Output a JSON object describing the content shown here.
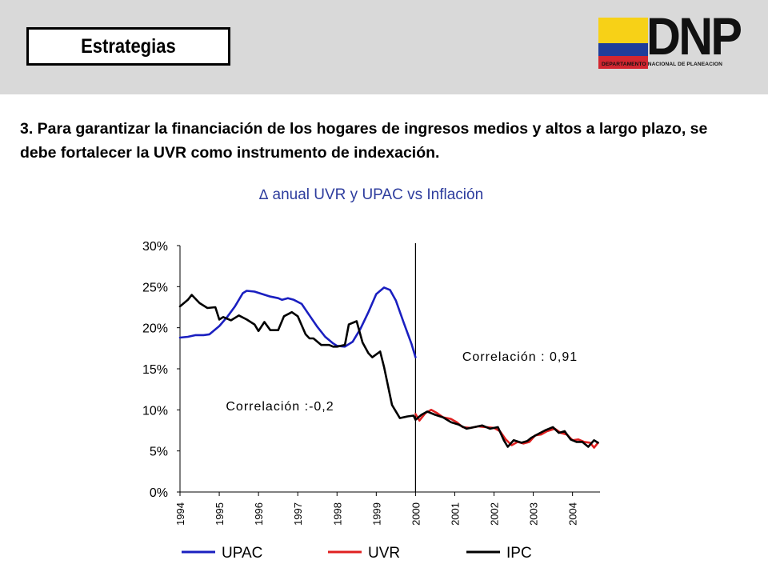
{
  "header": {
    "title": "Estrategias"
  },
  "logo": {
    "wordmark": "DNP",
    "subtitle": "DEPARTAMENTO NACIONAL DE PLANEACION"
  },
  "body": {
    "text": "3.  Para garantizar la financiación de los hogares de ingresos medios y altos a largo plazo, se debe fortalecer la UVR como instrumento de indexación."
  },
  "colors": {
    "upac": "#1a1fc0",
    "uvr": "#e02020",
    "ipc": "#000000",
    "header_band": "#d9d9d9",
    "title_text": "#2e3d9e"
  },
  "chart_data": {
    "type": "line",
    "title_symbol": "∆",
    "title": "anual UVR y UPAC vs Inflación",
    "xlabel": "",
    "ylabel": "",
    "x_ticks": [
      "1994",
      "1995",
      "1996",
      "1997",
      "1998",
      "1999",
      "2000",
      "2001",
      "2002",
      "2003",
      "2004"
    ],
    "y_ticks": [
      "30%",
      "25%",
      "20%",
      "15%",
      "10%",
      "5%",
      "0%"
    ],
    "xlim": [
      1994,
      2004.7
    ],
    "ylim": [
      0,
      30
    ],
    "vertical_line_at": 2000,
    "grid": false,
    "legend_position": "bottom",
    "annotations": [
      "Correlación :-0,2",
      "Correlación : 0,91"
    ],
    "series": [
      {
        "name": "UPAC",
        "x": [
          1994.0,
          1994.2,
          1994.4,
          1994.6,
          1994.75,
          1995.0,
          1995.2,
          1995.4,
          1995.6,
          1995.7,
          1995.9,
          1996.1,
          1996.3,
          1996.5,
          1996.6,
          1996.75,
          1996.9,
          1997.1,
          1997.3,
          1997.5,
          1997.7,
          1997.9,
          1998.0,
          1998.2,
          1998.4,
          1998.6,
          1998.8,
          1999.0,
          1999.2,
          1999.35,
          1999.5,
          1999.7,
          1999.9,
          2000.0
        ],
        "y": [
          18.8,
          18.9,
          19.1,
          19.1,
          19.2,
          20.2,
          21.3,
          22.6,
          24.2,
          24.5,
          24.4,
          24.1,
          23.8,
          23.6,
          23.4,
          23.6,
          23.4,
          22.9,
          21.5,
          20.1,
          18.9,
          18.1,
          17.8,
          17.7,
          18.3,
          19.9,
          21.9,
          24.1,
          24.9,
          24.6,
          23.3,
          20.6,
          18.0,
          16.4
        ]
      },
      {
        "name": "UVR",
        "x": [
          2000.0,
          2000.1,
          2000.25,
          2000.4,
          2000.55,
          2000.7,
          2000.9,
          2001.05,
          2001.2,
          2001.4,
          2001.6,
          2001.8,
          2002.0,
          2002.15,
          2002.3,
          2002.45,
          2002.6,
          2002.75,
          2002.9,
          2003.05,
          2003.2,
          2003.35,
          2003.55,
          2003.7,
          2003.85,
          2004.0,
          2004.15,
          2004.3,
          2004.45,
          2004.55,
          2004.65
        ],
        "y": [
          9.5,
          8.7,
          9.6,
          10.0,
          9.6,
          9.1,
          8.9,
          8.5,
          7.9,
          7.8,
          8.0,
          7.9,
          7.8,
          7.4,
          6.4,
          5.7,
          6.1,
          5.9,
          6.1,
          6.9,
          7.0,
          7.4,
          7.7,
          7.2,
          7.0,
          6.3,
          6.4,
          6.1,
          6.0,
          5.4,
          6.0
        ]
      },
      {
        "name": "IPC",
        "x": [
          1994.0,
          1994.2,
          1994.3,
          1994.5,
          1994.7,
          1994.9,
          1995.0,
          1995.1,
          1995.3,
          1995.5,
          1995.7,
          1995.9,
          1996.0,
          1996.15,
          1996.3,
          1996.5,
          1996.65,
          1996.85,
          1997.0,
          1997.1,
          1997.2,
          1997.3,
          1997.4,
          1997.5,
          1997.6,
          1997.8,
          1997.9,
          1998.0,
          1998.2,
          1998.3,
          1998.5,
          1998.65,
          1998.8,
          1998.9,
          1999.1,
          1999.2,
          1999.4,
          1999.6,
          1999.8,
          1999.95,
          2000.0,
          2000.15,
          2000.3,
          2000.5,
          2000.7,
          2000.9,
          2001.1,
          2001.3,
          2001.5,
          2001.7,
          2001.9,
          2002.1,
          2002.25,
          2002.35,
          2002.5,
          2002.7,
          2002.85,
          2002.95,
          2003.1,
          2003.3,
          2003.5,
          2003.65,
          2003.8,
          2003.95,
          2004.1,
          2004.25,
          2004.4,
          2004.55,
          2004.65
        ],
        "y": [
          22.6,
          23.4,
          24.0,
          23.0,
          22.4,
          22.5,
          21.0,
          21.3,
          20.9,
          21.5,
          21.0,
          20.4,
          19.6,
          20.7,
          19.7,
          19.7,
          21.4,
          21.9,
          21.4,
          20.3,
          19.2,
          18.7,
          18.7,
          18.3,
          17.9,
          17.9,
          17.7,
          17.7,
          17.9,
          20.4,
          20.8,
          18.2,
          16.9,
          16.4,
          17.1,
          15.2,
          10.6,
          9.0,
          9.2,
          9.3,
          8.8,
          9.4,
          9.8,
          9.4,
          9.1,
          8.5,
          8.2,
          7.7,
          7.9,
          8.1,
          7.7,
          7.9,
          6.3,
          5.5,
          6.3,
          6.0,
          6.2,
          6.6,
          7.0,
          7.5,
          7.9,
          7.2,
          7.4,
          6.4,
          6.1,
          6.1,
          5.5,
          6.3,
          6.0
        ]
      }
    ]
  }
}
